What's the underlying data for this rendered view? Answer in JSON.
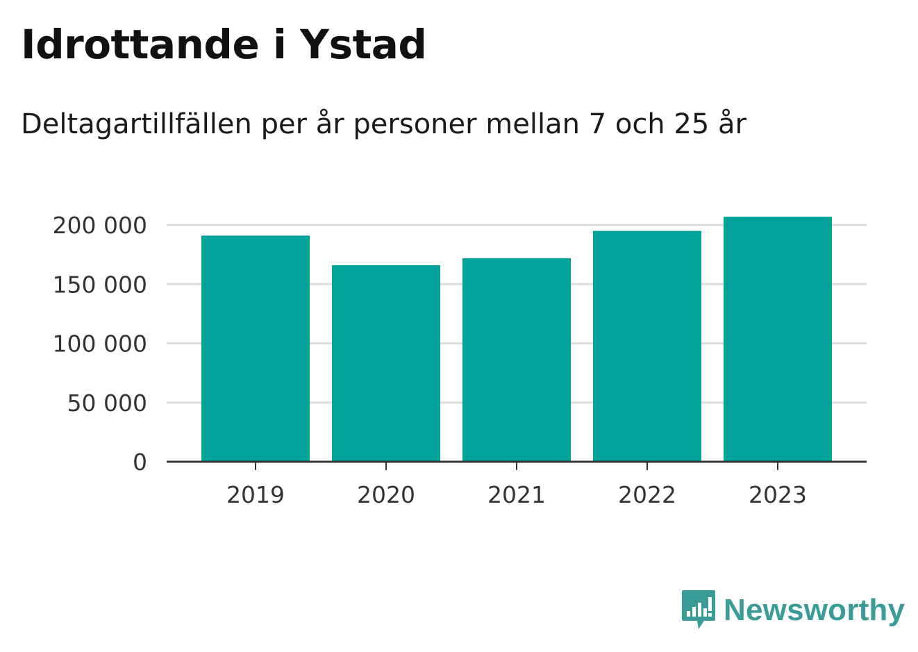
{
  "title": "Idrottande i Ystad",
  "subtitle": "Deltagartillfällen per år personer mellan 7 och 25 år",
  "brand": {
    "name": "Newsworthy",
    "icon": "newsworthy-logo-icon",
    "color": "#3a9c96"
  },
  "colors": {
    "bar": "#00a39a",
    "grid": "#dddddd",
    "axis": "#333333"
  },
  "chart_data": {
    "type": "bar",
    "categories": [
      "2019",
      "2020",
      "2021",
      "2022",
      "2023"
    ],
    "values": [
      191000,
      166000,
      172000,
      195000,
      207000
    ],
    "ylim": [
      0,
      200000
    ],
    "yticks": [
      0,
      50000,
      100000,
      150000,
      200000
    ],
    "ytick_labels": [
      "0",
      "50 000",
      "100 000",
      "150 000",
      "200 000"
    ],
    "xlabel": "",
    "ylabel": "",
    "grid": true,
    "legend": "none"
  }
}
